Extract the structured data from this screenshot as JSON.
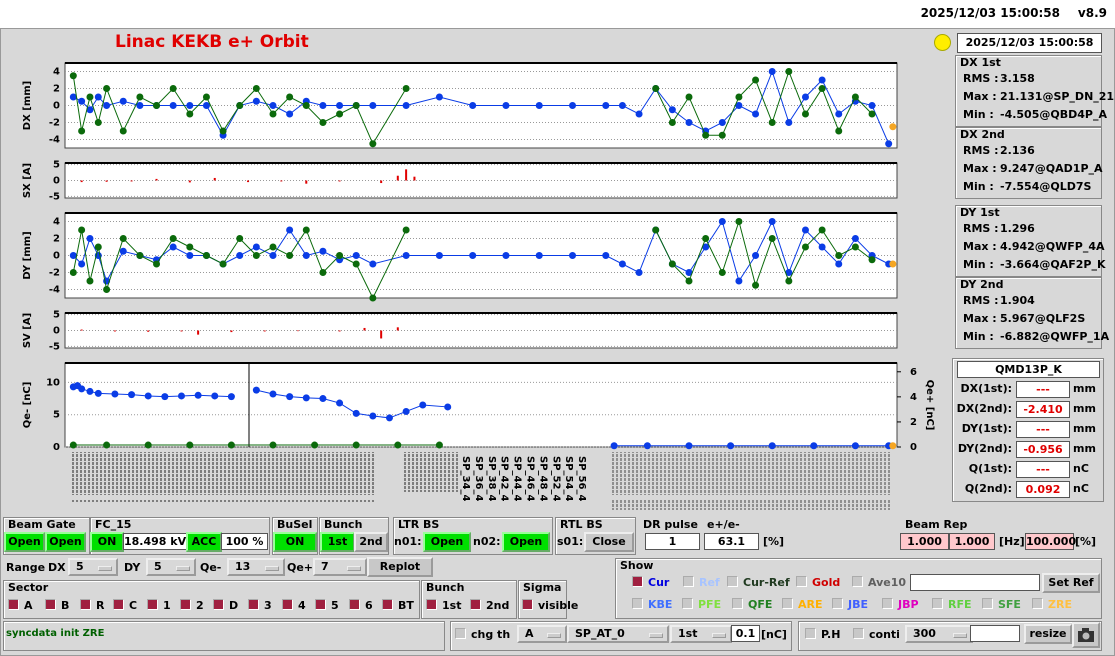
{
  "header": {
    "timestamp": "2025/12/03 15:00:58",
    "version": "v8.9"
  },
  "title": "Linac KEKB e+ Orbit",
  "status_time": "2025/12/03 15:00:58",
  "plots": [
    {
      "type": "line",
      "ylabel": "DX [mm]",
      "xlim": [
        0,
        100
      ],
      "ylim": [
        -5,
        5
      ],
      "yticks": [
        4,
        2,
        0,
        -2,
        -4
      ],
      "grid": true,
      "series": [
        {
          "color": "#0a3ce6",
          "x": [
            1,
            2,
            3,
            4,
            5,
            7,
            9,
            11,
            13,
            15,
            17,
            19,
            21,
            23,
            25,
            27,
            29,
            31,
            33,
            35,
            37,
            41,
            45,
            49,
            53,
            57,
            61,
            65,
            67,
            69,
            71,
            73,
            75,
            77,
            79,
            81,
            83,
            85,
            87,
            89,
            91,
            93,
            95,
            97,
            99
          ],
          "values": [
            1,
            0.5,
            -0.5,
            1,
            0,
            0.5,
            0,
            0,
            0,
            0,
            0,
            -3.5,
            0,
            0.5,
            0,
            -1,
            0.5,
            0,
            0,
            0,
            0,
            0,
            1,
            0,
            0,
            0,
            0,
            0,
            0,
            -1,
            2,
            -0.5,
            -2,
            -3,
            -2,
            0,
            -1,
            4,
            -2,
            1,
            3,
            -1,
            0.5,
            0,
            -4.5
          ]
        },
        {
          "color": "#0b6a0b",
          "x": [
            1,
            2,
            3,
            4,
            5,
            7,
            9,
            11,
            13,
            15,
            17,
            19,
            21,
            23,
            25,
            27,
            29,
            31,
            33,
            35,
            37,
            41,
            45,
            49,
            53,
            57,
            61,
            65,
            67,
            69,
            71,
            73,
            75,
            77,
            79,
            81,
            83,
            85,
            87,
            89,
            91,
            93,
            95,
            97,
            99
          ],
          "values": [
            3.5,
            -3,
            1,
            -2,
            2,
            -3,
            1,
            0,
            2,
            -1,
            1,
            -3,
            0,
            2,
            -1,
            1,
            0,
            -2,
            -1,
            0,
            -4.5,
            2,
            null,
            null,
            null,
            null,
            null,
            null,
            null,
            null,
            2,
            -2,
            1,
            -3.5,
            -3.5,
            1,
            3,
            -2,
            4,
            -1,
            2,
            -3,
            1,
            -1,
            null
          ]
        },
        {
          "color": "#f5a623",
          "x": [
            99.5
          ],
          "values": [
            -2.5
          ]
        }
      ]
    },
    {
      "type": "bar",
      "ylabel": "SX [A]",
      "xlim": [
        0,
        100
      ],
      "ylim": [
        -5.5,
        5.5
      ],
      "yticks": [
        5,
        0,
        -5
      ],
      "grid": true,
      "color": "#e00000",
      "x": [
        2,
        5,
        8,
        11,
        15,
        18,
        22,
        26,
        29,
        33,
        38,
        40,
        41,
        42
      ],
      "values": [
        -0.5,
        -0.4,
        -0.3,
        0.5,
        -0.6,
        0.8,
        -0.5,
        -0.3,
        -1,
        -0.3,
        -0.8,
        1.5,
        3.5,
        1.2
      ]
    },
    {
      "type": "line",
      "ylabel": "DY [mm]",
      "xlim": [
        0,
        100
      ],
      "ylim": [
        -5,
        5
      ],
      "yticks": [
        4,
        2,
        0,
        -2,
        -4
      ],
      "grid": true,
      "series": [
        {
          "color": "#0a3ce6",
          "x": [
            1,
            2,
            3,
            4,
            5,
            7,
            9,
            11,
            13,
            15,
            17,
            19,
            21,
            23,
            25,
            27,
            29,
            31,
            33,
            35,
            37,
            41,
            45,
            49,
            53,
            57,
            61,
            65,
            67,
            69,
            71,
            73,
            75,
            77,
            79,
            81,
            83,
            85,
            87,
            89,
            91,
            93,
            95,
            97,
            99
          ],
          "values": [
            0,
            -1,
            2,
            0,
            -3,
            0.5,
            0,
            -0.5,
            1,
            0,
            0,
            -1,
            0,
            1,
            0,
            3,
            0,
            0.5,
            -0.5,
            0,
            -1,
            0,
            0,
            0,
            0,
            0,
            0,
            0,
            -1,
            -2,
            3,
            -1,
            -2,
            1,
            4,
            -3,
            0,
            4,
            -2,
            3,
            1,
            -1,
            2,
            0,
            -1
          ]
        },
        {
          "color": "#0b6a0b",
          "x": [
            1,
            2,
            3,
            4,
            5,
            7,
            9,
            11,
            13,
            15,
            17,
            19,
            21,
            23,
            25,
            27,
            29,
            31,
            33,
            35,
            37,
            41,
            45,
            49,
            53,
            57,
            61,
            65,
            67,
            69,
            71,
            73,
            75,
            77,
            79,
            81,
            83,
            85,
            87,
            89,
            91,
            93,
            95,
            97,
            99
          ],
          "values": [
            -2,
            3,
            -3,
            1,
            -4,
            2,
            0,
            -1,
            2,
            1,
            0,
            -1,
            2,
            0,
            1,
            0,
            3,
            -2,
            0,
            -1,
            -5,
            3,
            null,
            null,
            null,
            null,
            null,
            null,
            null,
            null,
            3,
            -1,
            -3,
            2,
            -2,
            4,
            -3.5,
            2,
            -3,
            1,
            3,
            0,
            1,
            -0.5,
            null
          ]
        },
        {
          "color": "#f5a623",
          "x": [
            99.5
          ],
          "values": [
            -1
          ]
        }
      ]
    },
    {
      "type": "bar",
      "ylabel": "SV [A]",
      "xlim": [
        0,
        100
      ],
      "ylim": [
        -5.5,
        5.5
      ],
      "yticks": [
        5,
        0,
        -5
      ],
      "grid": true,
      "color": "#e00000",
      "x": [
        2,
        6,
        10,
        14,
        16,
        20,
        24,
        28,
        33,
        36,
        38,
        40
      ],
      "values": [
        0.3,
        -0.3,
        -0.4,
        -0.3,
        -1.3,
        -0.5,
        -0.3,
        -0.2,
        -0.3,
        0.8,
        -2.5,
        1
      ]
    },
    {
      "type": "line",
      "ylabel": "Qe- [nC]",
      "y2label": "Qe+ [nC]",
      "xlim": [
        0,
        100
      ],
      "ylim": [
        0,
        13
      ],
      "yticks": [
        10,
        5,
        0
      ],
      "y2lim": [
        0,
        6.7
      ],
      "y2ticks": [
        6,
        4,
        2,
        0
      ],
      "grid": true,
      "series": [
        {
          "color": "#0a3ce6",
          "x": [
            1,
            1.5,
            2,
            3,
            4,
            6,
            8,
            10,
            12,
            14,
            16,
            18,
            20,
            22,
            23,
            25,
            27,
            29,
            31,
            33,
            35,
            37,
            39,
            41,
            43,
            46
          ],
          "values": [
            9.3,
            9.5,
            9,
            8.6,
            8.3,
            8.2,
            8.1,
            7.9,
            7.8,
            7.9,
            8,
            7.9,
            7.8,
            null,
            8.8,
            8.2,
            7.8,
            7.6,
            7.5,
            6.8,
            5.2,
            4.8,
            4.5,
            5.5,
            6.5,
            6.2
          ]
        },
        {
          "color": "#0b6a0b",
          "x": [
            1,
            5,
            10,
            15,
            20,
            25,
            30,
            35,
            40,
            45
          ],
          "values": [
            0.3,
            0.3,
            0.3,
            0.3,
            0.3,
            0.3,
            0.3,
            0.3,
            0.3,
            0.3
          ]
        },
        {
          "color": "#0a3ce6",
          "axis": "y2",
          "x": [
            66,
            70,
            75,
            80,
            85,
            90,
            95,
            99
          ],
          "values": [
            0.1,
            0.1,
            0.1,
            0.1,
            0.1,
            0.1,
            0.1,
            0.1
          ]
        },
        {
          "color": "#f5a623",
          "axis": "y2",
          "x": [
            99.5
          ],
          "values": [
            0.1
          ]
        }
      ]
    }
  ],
  "x_labels": [
    "SP_34_4",
    "SP_36_4",
    "SP_38_4",
    "SP_42_4",
    "SP_44_4",
    "SP_46_4",
    "SP_48_4",
    "SP_52_4",
    "SP_54_4",
    "SP_56_4"
  ],
  "stats": [
    {
      "title": "DX 1st",
      "rows": [
        [
          "RMS :",
          "3.158"
        ],
        [
          "Max :",
          "21.131@SP_DN_21"
        ],
        [
          "Min :",
          "-4.505@QBD4P_A"
        ]
      ]
    },
    {
      "title": "DX 2nd",
      "rows": [
        [
          "RMS :",
          "2.136"
        ],
        [
          "Max :",
          "9.247@QAD1P_A"
        ],
        [
          "Min :",
          "-7.554@QLD7S"
        ]
      ]
    },
    {
      "title": "DY 1st",
      "rows": [
        [
          "RMS :",
          "1.296"
        ],
        [
          "Max :",
          "4.942@QWFP_4A"
        ],
        [
          "Min :",
          "-3.664@QAF2P_K"
        ]
      ]
    },
    {
      "title": "DY 2nd",
      "rows": [
        [
          "RMS :",
          "1.904"
        ],
        [
          "Max :",
          "5.967@QLF2S"
        ],
        [
          "Min :",
          "-6.882@QWFP_1A"
        ]
      ]
    }
  ],
  "element": {
    "name": "QMD13P_K",
    "rows": [
      [
        "DX(1st):",
        "---",
        "mm"
      ],
      [
        "DX(2nd):",
        "-2.410",
        "mm"
      ],
      [
        "DY(1st):",
        "---",
        "mm"
      ],
      [
        "DY(2nd):",
        "-0.956",
        "mm"
      ],
      [
        "Q(1st):",
        "---",
        "nC"
      ],
      [
        "Q(2nd):",
        "0.092",
        "nC"
      ]
    ]
  },
  "controls": {
    "beam_gate": {
      "label": "Beam Gate",
      "buttons": [
        "Open",
        "Open"
      ]
    },
    "fc": {
      "label": "FC_15",
      "state": "ON",
      "voltage": "18.498 kV",
      "mode": "ACC",
      "percent": "100 %"
    },
    "busel": {
      "label": "BuSel",
      "state": "ON"
    },
    "bunch": {
      "label": "Bunch",
      "buttons": [
        "1st",
        "2nd"
      ]
    },
    "ltr_bs": {
      "label": "LTR BS",
      "items": [
        [
          "n01:",
          "Open"
        ],
        [
          "n02:",
          "Open"
        ]
      ]
    },
    "rtl_bs": {
      "label": "RTL BS",
      "items": [
        [
          "s01:",
          "Close"
        ]
      ]
    },
    "dr_pulse": {
      "label": "DR pulse",
      "value": "1"
    },
    "ratio": {
      "label": "e+/e-",
      "value": "63.1",
      "unit": "[%]"
    },
    "beam_rep": {
      "label": "Beam Rep",
      "values": [
        "1.000",
        "1.000"
      ],
      "unit": "[Hz]",
      "percent": "100.000",
      "percent_unit": "[%]"
    },
    "range": {
      "label": "Range",
      "items": [
        [
          "DX",
          "5"
        ],
        [
          "DY",
          "5"
        ],
        [
          "Qe-",
          "13"
        ],
        [
          "Qe+",
          "7"
        ]
      ],
      "button": "Replot"
    },
    "sector": {
      "label": "Sector",
      "items": [
        "A",
        "B",
        "R",
        "C",
        "1",
        "2",
        "D",
        "3",
        "4",
        "5",
        "6",
        "BT"
      ]
    },
    "bunch2": {
      "label": "Bunch",
      "items": [
        "1st",
        "2nd"
      ]
    },
    "sigma": {
      "label": "Sigma",
      "items": [
        "visible"
      ]
    },
    "show": {
      "label": "Show",
      "button": "Set Ref",
      "row1": [
        {
          "text": "Cur",
          "color": "#0000e0",
          "checked": true
        },
        {
          "text": "Ref",
          "color": "#a8c4ff",
          "checked": false
        },
        {
          "text": "Cur-Ref",
          "color": "#203a20",
          "checked": false
        },
        {
          "text": "Gold",
          "color": "#d00000",
          "checked": false
        },
        {
          "text": "Ave10",
          "color": "#606060",
          "checked": false
        }
      ],
      "row2": [
        {
          "text": "KBE",
          "color": "#4070ff"
        },
        {
          "text": "PFE",
          "color": "#80e040"
        },
        {
          "text": "QFE",
          "color": "#208020"
        },
        {
          "text": "ARE",
          "color": "#ffb000"
        },
        {
          "text": "JBE",
          "color": "#4060ff"
        },
        {
          "text": "JBP",
          "color": "#e000c0"
        },
        {
          "text": "RFE",
          "color": "#60d040"
        },
        {
          "text": "SFE",
          "color": "#40a040"
        },
        {
          "text": "ZRE",
          "color": "#ffc040"
        }
      ]
    },
    "status": "syncdata init ZRE",
    "chg": {
      "label": "chg th",
      "options": [
        "A",
        "SP_AT_0",
        "1st"
      ],
      "threshold": "0.1",
      "unit": "[nC]"
    },
    "ph": {
      "labels": [
        "P.H",
        "conti"
      ],
      "value": "300",
      "button": "resize"
    }
  }
}
